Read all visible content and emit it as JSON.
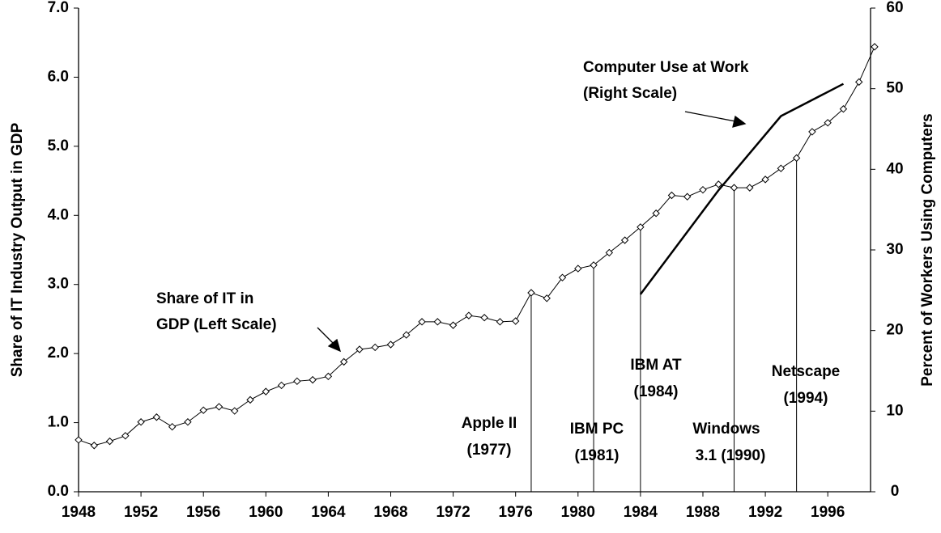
{
  "chart_data": {
    "type": "line",
    "y_label": "Share of IT Industry Output in GDP",
    "y2_label": "Percent of Workers Using Computers",
    "xlim": [
      1948,
      1999
    ],
    "xticks": [
      1948,
      1952,
      1956,
      1960,
      1964,
      1968,
      1972,
      1976,
      1980,
      1984,
      1988,
      1992,
      1996
    ],
    "ylim": [
      0,
      7
    ],
    "yticks": [
      {
        "value": 0,
        "label": "0.0"
      },
      {
        "value": 1,
        "label": "1.0"
      },
      {
        "value": 2,
        "label": "2.0"
      },
      {
        "value": 3,
        "label": "3.0"
      },
      {
        "value": 4,
        "label": "4.0"
      },
      {
        "value": 5,
        "label": "5.0"
      },
      {
        "value": 6,
        "label": "6.0"
      },
      {
        "value": 7,
        "label": "7.0"
      }
    ],
    "y2lim": [
      0,
      60
    ],
    "y2ticks": [
      0,
      10,
      20,
      30,
      40,
      50,
      60
    ],
    "series": [
      {
        "name": "Share of IT in GDP (Left Scale)",
        "label_lines": [
          "Share of IT in",
          "GDP (Left Scale)"
        ],
        "color": "#000000",
        "marker": "diamond",
        "x": [
          1948,
          1949,
          1950,
          1951,
          1952,
          1953,
          1954,
          1955,
          1956,
          1957,
          1958,
          1959,
          1960,
          1961,
          1962,
          1963,
          1964,
          1965,
          1966,
          1967,
          1968,
          1969,
          1970,
          1971,
          1972,
          1973,
          1974,
          1975,
          1976,
          1977,
          1978,
          1979,
          1980,
          1981,
          1982,
          1983,
          1984,
          1985,
          1986,
          1987,
          1988,
          1989,
          1990,
          1991,
          1992,
          1993,
          1994,
          1995,
          1996,
          1997,
          1998,
          1999
        ],
        "values": [
          0.75,
          0.67,
          0.73,
          0.81,
          1.01,
          1.08,
          0.94,
          1.01,
          1.18,
          1.23,
          1.17,
          1.33,
          1.45,
          1.54,
          1.6,
          1.62,
          1.67,
          1.88,
          2.06,
          2.09,
          2.13,
          2.27,
          2.46,
          2.46,
          2.41,
          2.55,
          2.52,
          2.46,
          2.47,
          2.88,
          2.8,
          3.1,
          3.23,
          3.28,
          3.46,
          3.64,
          3.83,
          4.03,
          4.29,
          4.27,
          4.37,
          4.45,
          4.4,
          4.4,
          4.52,
          4.68,
          4.83,
          5.21,
          5.34,
          5.54,
          5.93,
          6.44
        ]
      },
      {
        "name": "Computer Use at Work (Right Scale)",
        "label_lines": [
          "Computer Use at Work",
          "(Right Scale)"
        ],
        "color": "#000000",
        "axis": "y2",
        "x": [
          1984,
          1989,
          1993,
          1997
        ],
        "values": [
          24.5,
          37.4,
          46.6,
          50.6
        ]
      }
    ],
    "annotations": [
      {
        "lines": [
          "Apple II",
          "(1977)"
        ],
        "x": 1977
      },
      {
        "lines": [
          "IBM PC",
          "(1981)"
        ],
        "x": 1981
      },
      {
        "lines": [
          "IBM AT",
          "(1984)"
        ],
        "x": 1984
      },
      {
        "lines": [
          "Windows",
          "3.1 (1990)"
        ],
        "x": 1990
      },
      {
        "lines": [
          "Netscape",
          "(1994)"
        ],
        "x": 1994
      }
    ]
  }
}
